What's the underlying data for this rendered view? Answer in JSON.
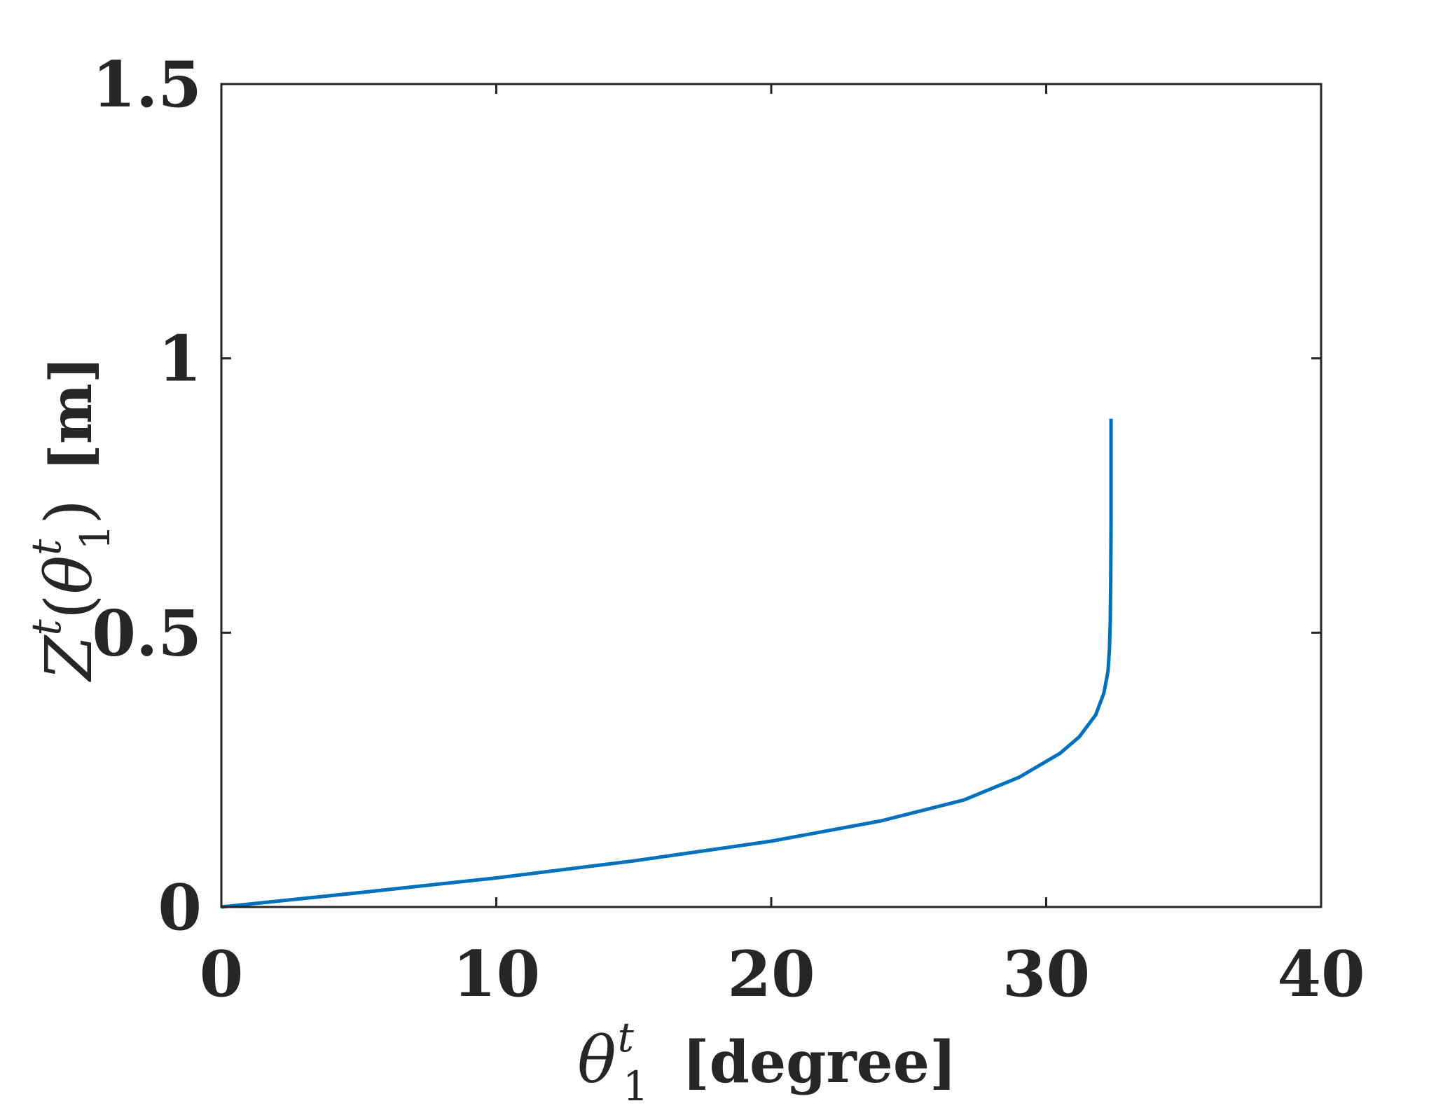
{
  "chart_data": {
    "type": "line",
    "title": "",
    "xlabel_parts": {
      "symbol": "θ",
      "sup": "t",
      "sub": "1",
      "unit": "[degree]"
    },
    "ylabel_parts": {
      "symbol": "Z",
      "sup": "t",
      "arg_symbol": "θ",
      "arg_sup": "t",
      "arg_sub": "1",
      "unit": "[m]"
    },
    "xlim": [
      0,
      40
    ],
    "ylim": [
      0,
      1.5
    ],
    "xticks": [
      "0",
      "10",
      "20",
      "30",
      "40"
    ],
    "yticks": [
      "0",
      "0.5",
      "1",
      "1.5"
    ],
    "grid": false,
    "series": [
      {
        "color": "#0072BD",
        "x": [
          0,
          5,
          10,
          15,
          20,
          24,
          27,
          29,
          30.5,
          31.2,
          31.8,
          32.1,
          32.25,
          32.3,
          32.33,
          32.35,
          32.36,
          32.36,
          32.36
        ],
        "y": [
          0,
          0.026,
          0.053,
          0.084,
          0.12,
          0.157,
          0.195,
          0.236,
          0.28,
          0.31,
          0.35,
          0.39,
          0.43,
          0.47,
          0.52,
          0.6,
          0.7,
          0.8,
          0.89
        ]
      }
    ]
  }
}
